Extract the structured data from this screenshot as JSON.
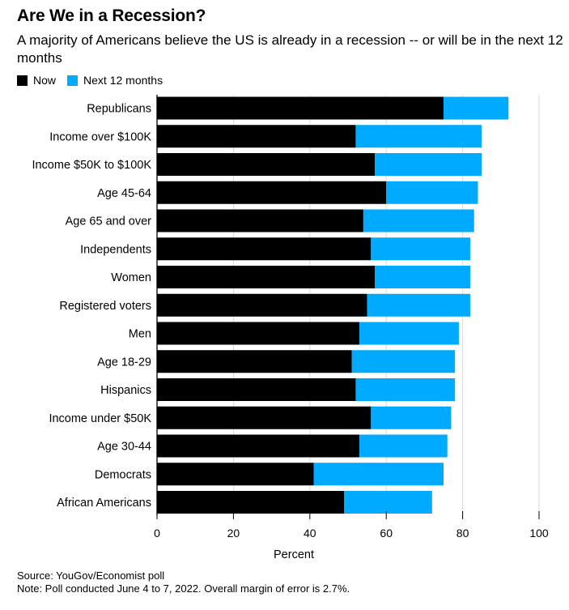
{
  "header": {
    "title": "Are We in a Recession?",
    "subtitle": "A majority of Americans believe the US is already in a recession -- or will be in the next 12 months"
  },
  "legend": [
    {
      "label": "Now",
      "color": "#000000"
    },
    {
      "label": "Next 12 months",
      "color": "#00aaff"
    }
  ],
  "footer": {
    "source": "Source: YouGov/Economist poll",
    "note": "Note: Poll conducted June 4 to 7, 2022. Overall margin of error is 2.7%."
  },
  "chart_data": {
    "type": "bar",
    "orientation": "horizontal",
    "stacked": true,
    "categories": [
      "Republicans",
      "Income over $100K",
      "Income $50K to $100K",
      "Age 45-64",
      "Age 65 and over",
      "Independents",
      "Women",
      "Registered voters",
      "Men",
      "Age 18-29",
      "Hispanics",
      "Income under $50K",
      "Age 30-44",
      "Democrats",
      "African Americans"
    ],
    "series": [
      {
        "name": "Now",
        "color": "#000000",
        "values": [
          75,
          52,
          57,
          60,
          54,
          56,
          57,
          55,
          53,
          51,
          52,
          56,
          53,
          41,
          49
        ]
      },
      {
        "name": "Next 12 months",
        "color": "#00aaff",
        "values": [
          17,
          33,
          28,
          24,
          29,
          26,
          25,
          27,
          26,
          27,
          26,
          21,
          23,
          34,
          23
        ]
      }
    ],
    "xlabel": "Percent",
    "xlim": [
      0,
      100
    ],
    "xticks": [
      0,
      20,
      40,
      60,
      80,
      100
    ],
    "grid": "vertical"
  }
}
